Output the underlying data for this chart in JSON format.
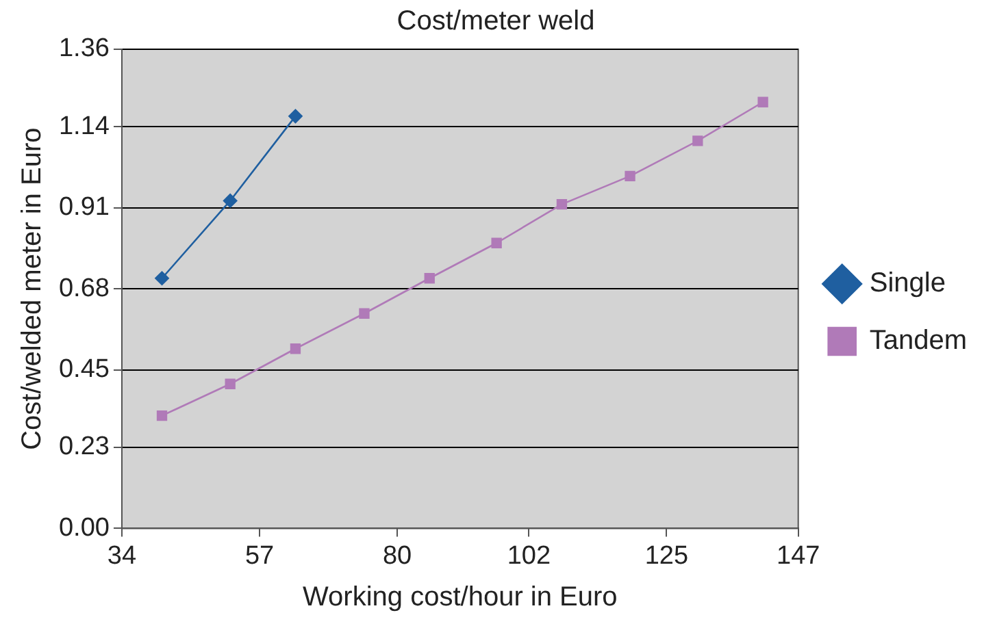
{
  "chart_data": {
    "type": "line",
    "title": "Cost/meter weld",
    "xlabel": "Working cost/hour in Euro",
    "ylabel": "Cost/welded meter in Euro",
    "series": [
      {
        "name": "Single",
        "color": "#1f5fa0",
        "marker": "diamond",
        "x": [
          40.7,
          52.1,
          63.0
        ],
        "values": [
          0.71,
          0.93,
          1.17
        ]
      },
      {
        "name": "Tandem",
        "color": "#b07ab8",
        "marker": "square",
        "x": [
          40.7,
          52.1,
          63.0,
          74.5,
          85.4,
          96.6,
          107.5,
          118.9,
          130.2,
          141.1
        ],
        "values": [
          0.32,
          0.41,
          0.51,
          0.61,
          0.71,
          0.81,
          0.92,
          1.0,
          1.1,
          1.21
        ]
      }
    ],
    "xlim": [
      34,
      147
    ],
    "xticks": [
      34,
      57,
      80,
      102,
      125,
      147
    ],
    "ylim": [
      0,
      1.36
    ],
    "yticks": [
      {
        "value": 0,
        "label": "0.00"
      },
      0.23,
      0.45,
      0.68,
      0.91,
      1.14,
      1.36
    ],
    "grid": "y",
    "legend": "right",
    "line_style": "solid"
  }
}
